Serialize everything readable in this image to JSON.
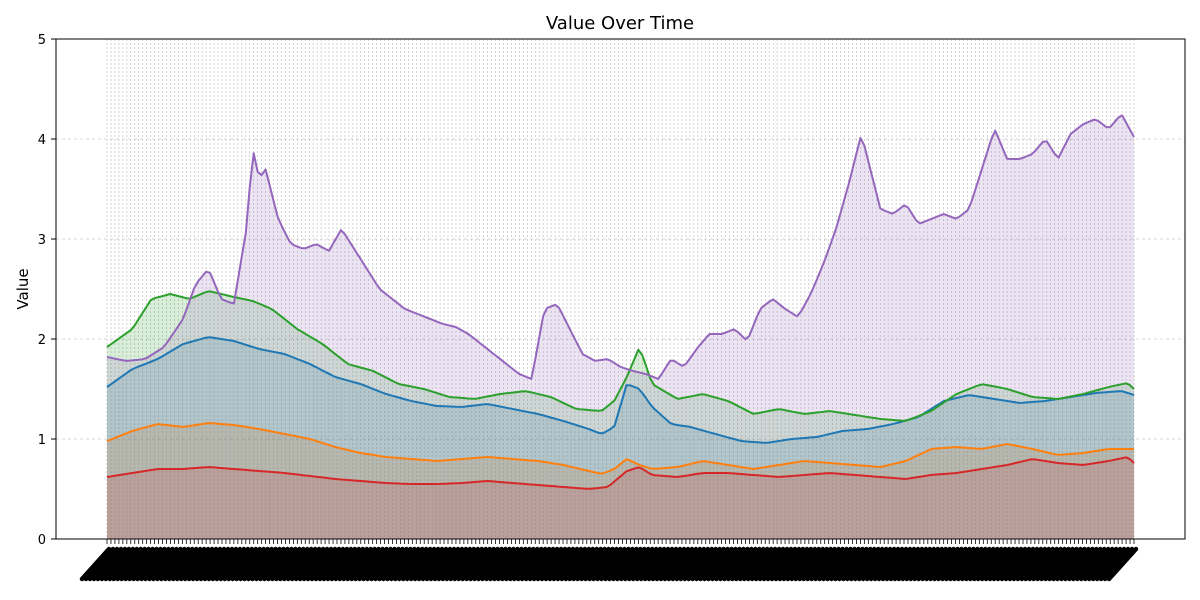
{
  "chart_data": {
    "type": "area",
    "title": "Value Over Time",
    "xlabel": "",
    "ylabel": "Value",
    "ylim": [
      0,
      5
    ],
    "yticks": [
      0,
      1,
      2,
      3,
      4,
      5
    ],
    "grid": true,
    "legend": "none",
    "x_tick_labels_note": "dense overlapping rotated tick labels, illegible",
    "n_points": 260,
    "series": [
      {
        "color": "#1f77b4",
        "anchors": [
          [
            0,
            1.52
          ],
          [
            8,
            1.7
          ],
          [
            16,
            1.8
          ],
          [
            24,
            1.95
          ],
          [
            32,
            2.02
          ],
          [
            40,
            1.98
          ],
          [
            48,
            1.9
          ],
          [
            56,
            1.85
          ],
          [
            64,
            1.75
          ],
          [
            72,
            1.62
          ],
          [
            80,
            1.55
          ],
          [
            88,
            1.45
          ],
          [
            96,
            1.38
          ],
          [
            104,
            1.33
          ],
          [
            112,
            1.32
          ],
          [
            120,
            1.35
          ],
          [
            128,
            1.3
          ],
          [
            136,
            1.25
          ],
          [
            144,
            1.18
          ],
          [
            152,
            1.1
          ],
          [
            156,
            1.05
          ],
          [
            160,
            1.12
          ],
          [
            164,
            1.55
          ],
          [
            168,
            1.5
          ],
          [
            172,
            1.32
          ],
          [
            178,
            1.15
          ],
          [
            184,
            1.12
          ],
          [
            192,
            1.05
          ],
          [
            200,
            0.98
          ],
          [
            208,
            0.96
          ],
          [
            216,
            1.0
          ],
          [
            224,
            1.02
          ],
          [
            232,
            1.08
          ],
          [
            240,
            1.1
          ],
          [
            248,
            1.15
          ],
          [
            256,
            1.22
          ],
          [
            264,
            1.38
          ],
          [
            272,
            1.44
          ],
          [
            280,
            1.4
          ],
          [
            288,
            1.36
          ],
          [
            296,
            1.38
          ],
          [
            304,
            1.42
          ],
          [
            312,
            1.46
          ],
          [
            320,
            1.48
          ],
          [
            324,
            1.44
          ]
        ]
      },
      {
        "color": "#ff7f0e",
        "anchors": [
          [
            0,
            0.98
          ],
          [
            8,
            1.08
          ],
          [
            16,
            1.15
          ],
          [
            24,
            1.12
          ],
          [
            32,
            1.16
          ],
          [
            40,
            1.14
          ],
          [
            48,
            1.1
          ],
          [
            56,
            1.05
          ],
          [
            64,
            1.0
          ],
          [
            72,
            0.92
          ],
          [
            80,
            0.86
          ],
          [
            88,
            0.82
          ],
          [
            96,
            0.8
          ],
          [
            104,
            0.78
          ],
          [
            112,
            0.8
          ],
          [
            120,
            0.82
          ],
          [
            128,
            0.8
          ],
          [
            136,
            0.78
          ],
          [
            144,
            0.74
          ],
          [
            152,
            0.68
          ],
          [
            156,
            0.65
          ],
          [
            160,
            0.7
          ],
          [
            164,
            0.8
          ],
          [
            168,
            0.74
          ],
          [
            172,
            0.7
          ],
          [
            180,
            0.72
          ],
          [
            188,
            0.78
          ],
          [
            196,
            0.74
          ],
          [
            204,
            0.7
          ],
          [
            212,
            0.74
          ],
          [
            220,
            0.78
          ],
          [
            228,
            0.76
          ],
          [
            236,
            0.74
          ],
          [
            244,
            0.72
          ],
          [
            252,
            0.78
          ],
          [
            260,
            0.9
          ],
          [
            268,
            0.92
          ],
          [
            276,
            0.9
          ],
          [
            284,
            0.95
          ],
          [
            292,
            0.9
          ],
          [
            300,
            0.84
          ],
          [
            308,
            0.86
          ],
          [
            316,
            0.9
          ],
          [
            324,
            0.9
          ]
        ]
      },
      {
        "color": "#2ca02c",
        "anchors": [
          [
            0,
            1.92
          ],
          [
            8,
            2.1
          ],
          [
            14,
            2.4
          ],
          [
            20,
            2.45
          ],
          [
            26,
            2.4
          ],
          [
            32,
            2.48
          ],
          [
            40,
            2.42
          ],
          [
            46,
            2.38
          ],
          [
            52,
            2.3
          ],
          [
            60,
            2.1
          ],
          [
            68,
            1.95
          ],
          [
            76,
            1.75
          ],
          [
            84,
            1.68
          ],
          [
            92,
            1.55
          ],
          [
            100,
            1.5
          ],
          [
            108,
            1.42
          ],
          [
            116,
            1.4
          ],
          [
            124,
            1.45
          ],
          [
            132,
            1.48
          ],
          [
            140,
            1.42
          ],
          [
            148,
            1.3
          ],
          [
            156,
            1.28
          ],
          [
            160,
            1.38
          ],
          [
            164,
            1.62
          ],
          [
            168,
            1.92
          ],
          [
            172,
            1.55
          ],
          [
            180,
            1.4
          ],
          [
            188,
            1.45
          ],
          [
            196,
            1.38
          ],
          [
            204,
            1.25
          ],
          [
            212,
            1.3
          ],
          [
            220,
            1.25
          ],
          [
            228,
            1.28
          ],
          [
            236,
            1.24
          ],
          [
            244,
            1.2
          ],
          [
            252,
            1.18
          ],
          [
            260,
            1.28
          ],
          [
            268,
            1.45
          ],
          [
            276,
            1.55
          ],
          [
            284,
            1.5
          ],
          [
            292,
            1.42
          ],
          [
            300,
            1.4
          ],
          [
            308,
            1.45
          ],
          [
            316,
            1.52
          ],
          [
            322,
            1.56
          ],
          [
            324,
            1.5
          ]
        ]
      },
      {
        "color": "#d62728",
        "anchors": [
          [
            0,
            0.62
          ],
          [
            8,
            0.66
          ],
          [
            16,
            0.7
          ],
          [
            24,
            0.7
          ],
          [
            32,
            0.72
          ],
          [
            40,
            0.7
          ],
          [
            48,
            0.68
          ],
          [
            56,
            0.66
          ],
          [
            64,
            0.63
          ],
          [
            72,
            0.6
          ],
          [
            80,
            0.58
          ],
          [
            88,
            0.56
          ],
          [
            96,
            0.55
          ],
          [
            104,
            0.55
          ],
          [
            112,
            0.56
          ],
          [
            120,
            0.58
          ],
          [
            128,
            0.56
          ],
          [
            136,
            0.54
          ],
          [
            144,
            0.52
          ],
          [
            152,
            0.5
          ],
          [
            158,
            0.52
          ],
          [
            164,
            0.68
          ],
          [
            168,
            0.72
          ],
          [
            172,
            0.64
          ],
          [
            180,
            0.62
          ],
          [
            188,
            0.66
          ],
          [
            196,
            0.66
          ],
          [
            204,
            0.64
          ],
          [
            212,
            0.62
          ],
          [
            220,
            0.64
          ],
          [
            228,
            0.66
          ],
          [
            236,
            0.64
          ],
          [
            244,
            0.62
          ],
          [
            252,
            0.6
          ],
          [
            260,
            0.64
          ],
          [
            268,
            0.66
          ],
          [
            276,
            0.7
          ],
          [
            284,
            0.74
          ],
          [
            292,
            0.8
          ],
          [
            300,
            0.76
          ],
          [
            308,
            0.74
          ],
          [
            316,
            0.78
          ],
          [
            322,
            0.82
          ],
          [
            324,
            0.76
          ]
        ]
      },
      {
        "color": "#9467bd",
        "anchors": [
          [
            0,
            1.82
          ],
          [
            6,
            1.78
          ],
          [
            12,
            1.8
          ],
          [
            18,
            1.92
          ],
          [
            24,
            2.2
          ],
          [
            28,
            2.55
          ],
          [
            32,
            2.7
          ],
          [
            36,
            2.4
          ],
          [
            40,
            2.35
          ],
          [
            44,
            3.1
          ],
          [
            46,
            3.9
          ],
          [
            48,
            3.6
          ],
          [
            50,
            3.7
          ],
          [
            54,
            3.2
          ],
          [
            58,
            2.95
          ],
          [
            62,
            2.9
          ],
          [
            66,
            2.95
          ],
          [
            70,
            2.88
          ],
          [
            74,
            3.1
          ],
          [
            78,
            2.9
          ],
          [
            82,
            2.7
          ],
          [
            86,
            2.5
          ],
          [
            90,
            2.4
          ],
          [
            94,
            2.3
          ],
          [
            98,
            2.25
          ],
          [
            102,
            2.2
          ],
          [
            106,
            2.15
          ],
          [
            110,
            2.12
          ],
          [
            114,
            2.05
          ],
          [
            118,
            1.95
          ],
          [
            122,
            1.85
          ],
          [
            126,
            1.75
          ],
          [
            130,
            1.65
          ],
          [
            134,
            1.6
          ],
          [
            138,
            2.3
          ],
          [
            142,
            2.35
          ],
          [
            146,
            2.1
          ],
          [
            150,
            1.85
          ],
          [
            154,
            1.78
          ],
          [
            158,
            1.8
          ],
          [
            162,
            1.72
          ],
          [
            166,
            1.68
          ],
          [
            170,
            1.65
          ],
          [
            174,
            1.6
          ],
          [
            178,
            1.8
          ],
          [
            182,
            1.72
          ],
          [
            186,
            1.9
          ],
          [
            190,
            2.05
          ],
          [
            194,
            2.05
          ],
          [
            198,
            2.1
          ],
          [
            202,
            1.98
          ],
          [
            206,
            2.3
          ],
          [
            210,
            2.4
          ],
          [
            214,
            2.3
          ],
          [
            218,
            2.22
          ],
          [
            222,
            2.45
          ],
          [
            226,
            2.75
          ],
          [
            230,
            3.1
          ],
          [
            234,
            3.55
          ],
          [
            238,
            4.05
          ],
          [
            240,
            3.8
          ],
          [
            244,
            3.3
          ],
          [
            248,
            3.25
          ],
          [
            252,
            3.35
          ],
          [
            256,
            3.15
          ],
          [
            260,
            3.2
          ],
          [
            264,
            3.25
          ],
          [
            268,
            3.2
          ],
          [
            272,
            3.3
          ],
          [
            276,
            3.7
          ],
          [
            280,
            4.1
          ],
          [
            284,
            3.8
          ],
          [
            288,
            3.8
          ],
          [
            292,
            3.85
          ],
          [
            296,
            4.0
          ],
          [
            300,
            3.8
          ],
          [
            304,
            4.05
          ],
          [
            308,
            4.15
          ],
          [
            312,
            4.2
          ],
          [
            316,
            4.1
          ],
          [
            320,
            4.25
          ],
          [
            324,
            4.02
          ]
        ]
      }
    ]
  }
}
